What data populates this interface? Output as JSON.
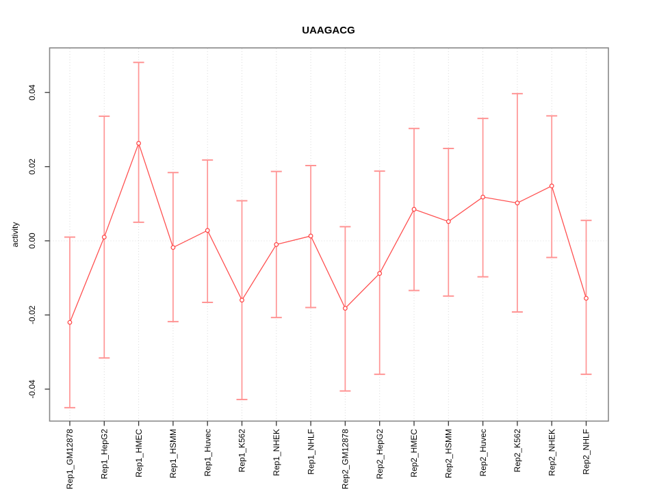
{
  "chart_data": {
    "type": "line",
    "subtype": "points-with-error-bars",
    "title": "UAAGACG",
    "xlabel": "",
    "ylabel": "activity",
    "ylim": [
      -0.04862,
      0.05203
    ],
    "yticks": [
      0.04,
      0.02,
      0,
      -0.02,
      -0.04
    ],
    "ytick_labels": [
      "0.04",
      "0.02",
      "0.00",
      "-0.02",
      "-0.04"
    ],
    "grid": "vertical dotted gridline at each category; horizontal dotted line at y=0; legend: none",
    "categories": [
      "Rep1_GM12878",
      "Rep1_HepG2",
      "Rep1_HMEC",
      "Rep1_HSMM",
      "Rep1_Huvec",
      "Rep1_K562",
      "Rep1_NHEK",
      "Rep1_NHLF",
      "Rep2_GM12878",
      "Rep2_HepG2",
      "Rep2_HMEC",
      "Rep2_HSMM",
      "Rep2_Huvec",
      "Rep2_K562",
      "Rep2_NHEK",
      "Rep2_NHLF"
    ],
    "series": [
      {
        "name": "activity",
        "values": [
          -0.022,
          0.001,
          0.0263,
          -0.0018,
          0.0028,
          -0.016,
          -0.001,
          0.0013,
          -0.0182,
          -0.0088,
          0.0085,
          0.0052,
          0.0118,
          0.0102,
          0.0148,
          -0.0155
        ],
        "err_hi": [
          0.001,
          0.0336,
          0.0481,
          0.0184,
          0.0218,
          0.0108,
          0.0187,
          0.0203,
          0.0038,
          0.0188,
          0.0303,
          0.0249,
          0.033,
          0.0397,
          0.0337,
          0.0055
        ],
        "err_lo": [
          -0.045,
          -0.0316,
          0.005,
          -0.0218,
          -0.0166,
          -0.0428,
          -0.0207,
          -0.018,
          -0.0405,
          -0.036,
          -0.0134,
          -0.0149,
          -0.0097,
          -0.0192,
          -0.0045,
          -0.036
        ]
      }
    ],
    "colors": {
      "marker": "#ff4040",
      "marker_fill": "#ffffff",
      "line": "#ff5050",
      "error_bar": "#ff9494",
      "grid": "#d9d9d9",
      "frame": "#878787",
      "tick": "#333333",
      "text": "#000000",
      "background": "#ffffff"
    }
  }
}
